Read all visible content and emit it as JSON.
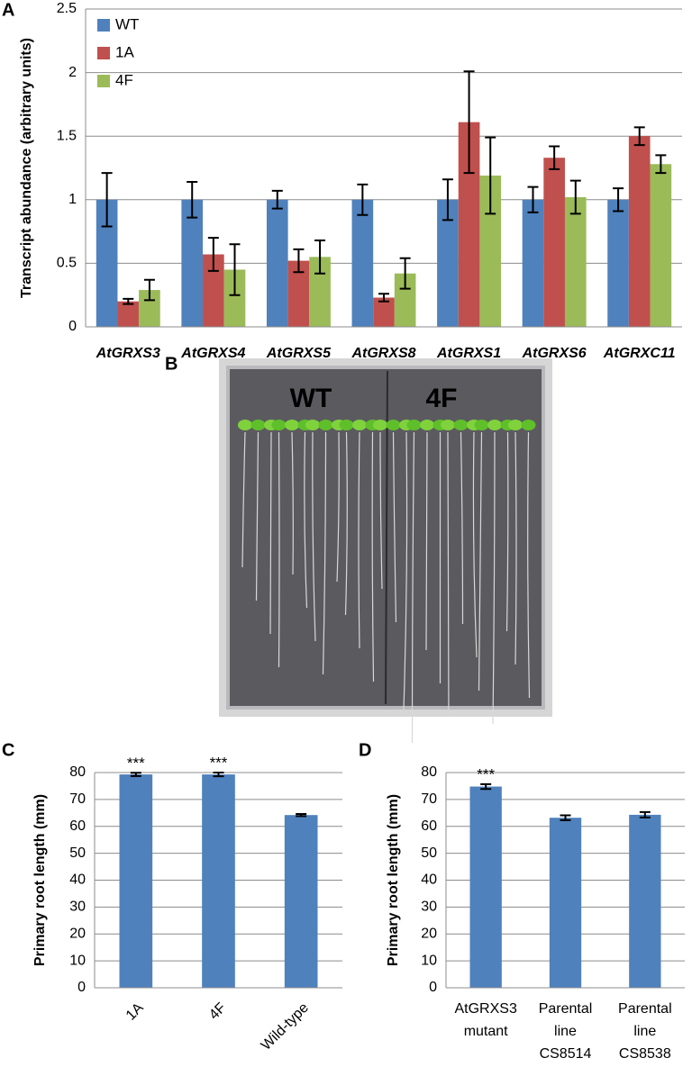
{
  "panel_labels": [
    "A",
    "B",
    "C",
    "D"
  ],
  "photo_labels": [
    "WT",
    "4F"
  ],
  "chart_data": [
    {
      "type": "grouped-bar",
      "ylabel": "Transcript abundance (arbitrary units)",
      "categories": [
        "AtGRXS3",
        "AtGRXS4",
        "AtGRXS5",
        "AtGRXS8",
        "AtGRXS1",
        "AtGRXS6",
        "AtGRXC11"
      ],
      "series": [
        {
          "name": "WT",
          "color": "#4f81bd",
          "values": [
            1,
            1,
            1,
            1,
            1,
            1,
            1
          ],
          "errors": [
            0.21,
            0.14,
            0.07,
            0.12,
            0.16,
            0.1,
            0.09
          ]
        },
        {
          "name": "1A",
          "color": "#c0504d",
          "values": [
            0.2,
            0.57,
            0.52,
            0.23,
            1.61,
            1.33,
            1.5
          ],
          "errors": [
            0.02,
            0.13,
            0.09,
            0.03,
            0.4,
            0.09,
            0.07
          ]
        },
        {
          "name": "4F",
          "color": "#9bbb59",
          "values": [
            0.29,
            0.45,
            0.55,
            0.42,
            1.19,
            1.02,
            1.28
          ],
          "errors": [
            0.08,
            0.2,
            0.13,
            0.12,
            0.3,
            0.13,
            0.07
          ]
        }
      ],
      "ylim": [
        0,
        2.5
      ],
      "yticks": [
        0,
        0.5,
        1,
        1.5,
        2,
        2.5
      ],
      "grid": true,
      "legend": "top-left"
    },
    {
      "type": "bar",
      "ylabel": "Primary root length (mm)",
      "categories": [
        "1A",
        "4F",
        "Wild-type"
      ],
      "values": [
        79.3,
        79.3,
        64.2
      ],
      "errors": [
        0.6,
        0.7,
        0.4
      ],
      "significance": [
        "***",
        "***",
        null
      ],
      "color": "#4f81bd",
      "ylim": [
        0,
        80
      ],
      "yticks": [
        0,
        10,
        20,
        30,
        40,
        50,
        60,
        70,
        80
      ],
      "grid": true
    },
    {
      "type": "bar",
      "ylabel": "Primary root length (mm)",
      "categories": [
        [
          "AtGRXS3",
          "mutant"
        ],
        [
          "Parental",
          "line",
          "CS8514"
        ],
        [
          "Parental",
          "line",
          "CS8538"
        ]
      ],
      "values": [
        74.8,
        63.2,
        64.3
      ],
      "errors": [
        0.9,
        0.9,
        1.0
      ],
      "significance": [
        "***",
        null,
        null
      ],
      "color": "#4f81bd",
      "ylim": [
        0,
        80
      ],
      "yticks": [
        0,
        10,
        20,
        30,
        40,
        50,
        60,
        70,
        80
      ],
      "grid": true
    }
  ]
}
